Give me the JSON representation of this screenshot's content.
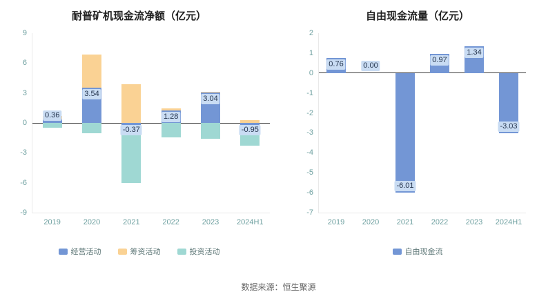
{
  "footer": {
    "source": "数据来源：恒生聚源"
  },
  "colors": {
    "bar_blue": "#7396d5",
    "bar_orange": "#fad294",
    "bar_teal": "#9fd8d3",
    "value_label_bg": "#c9dcf3",
    "axis_text": "#6ea0a0",
    "zero_line": "#3a3a3a"
  },
  "chart_data": [
    {
      "type": "bar",
      "stacked": true,
      "title": "耐普矿机现金流净额（亿元）",
      "categories": [
        "2019",
        "2020",
        "2021",
        "2022",
        "2023",
        "2024H1"
      ],
      "series": [
        {
          "name": "经营活动",
          "color": "#7396d5",
          "values": [
            0.36,
            3.54,
            -0.37,
            1.28,
            3.04,
            -0.95
          ]
        },
        {
          "name": "筹资活动",
          "color": "#fad294",
          "values": [
            0.35,
            3.3,
            3.85,
            0.18,
            0.08,
            0.3
          ]
        },
        {
          "name": "投资活动",
          "color": "#9fd8d3",
          "values": [
            -0.45,
            -1.05,
            -5.65,
            -1.45,
            -1.6,
            -1.35
          ]
        }
      ],
      "labels": [
        "0.36",
        "3.54",
        "-0.37",
        "1.28",
        "3.04",
        "-0.95"
      ],
      "labeled_series": "经营活动",
      "ylim": [
        -9,
        9
      ],
      "yticks": [
        9,
        6,
        3,
        0,
        -3,
        -6,
        -9
      ],
      "legend_position": "bottom",
      "grid": false
    },
    {
      "type": "bar",
      "stacked": false,
      "title": "自由现金流量（亿元）",
      "categories": [
        "2019",
        "2020",
        "2021",
        "2022",
        "2023",
        "2024H1"
      ],
      "series": [
        {
          "name": "自由现金流",
          "color": "#7396d5",
          "values": [
            0.76,
            0.0,
            -6.01,
            0.97,
            1.34,
            -3.03
          ]
        }
      ],
      "labels": [
        "0.76",
        "0.00",
        "-6.01",
        "0.97",
        "1.34",
        "-3.03"
      ],
      "labeled_series": "自由现金流",
      "ylim": [
        -7,
        2
      ],
      "yticks": [
        2,
        1,
        0,
        -1,
        -2,
        -3,
        -4,
        -5,
        -6,
        -7
      ],
      "legend_position": "bottom",
      "grid": false
    }
  ]
}
